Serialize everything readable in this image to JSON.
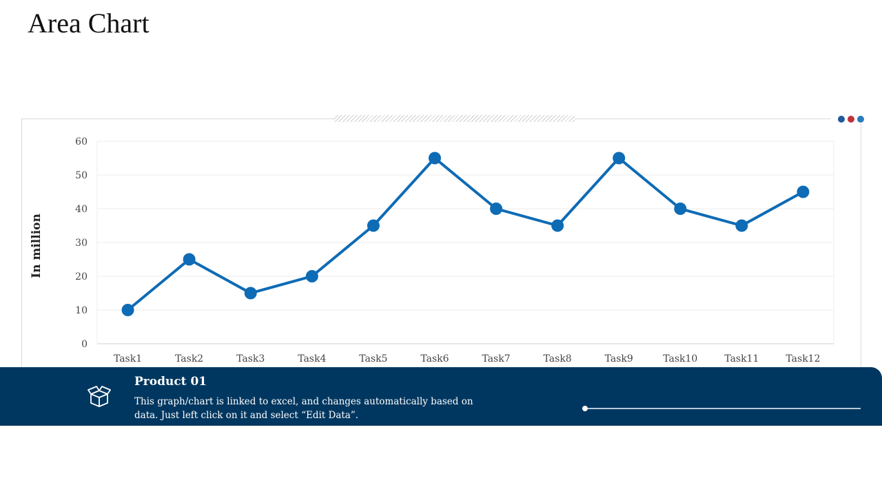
{
  "page": {
    "title": "Area Chart"
  },
  "accent_dots": [
    "#1f5a99",
    "#c0313a",
    "#2b7bbd"
  ],
  "chart_data": {
    "type": "line",
    "title": "",
    "xlabel": "",
    "ylabel": "In million",
    "categories": [
      "Task1",
      "Task2",
      "Task3",
      "Task4",
      "Task5",
      "Task6",
      "Task7",
      "Task8",
      "Task9",
      "Task10",
      "Task11",
      "Task12"
    ],
    "series": [
      {
        "name": "Product 01",
        "values": [
          10,
          25,
          15,
          20,
          35,
          55,
          40,
          35,
          55,
          40,
          35,
          45
        ],
        "color": "#0e6bb5"
      }
    ],
    "ylim": [
      0,
      60
    ],
    "yticks": [
      0,
      10,
      20,
      30,
      40,
      50,
      60
    ],
    "grid": true
  },
  "footer": {
    "icon": "open-box-icon",
    "title": "Product 01",
    "description": "This graph/chart is linked to excel, and changes automatically based on data. Just left click on it and select “Edit Data”."
  }
}
